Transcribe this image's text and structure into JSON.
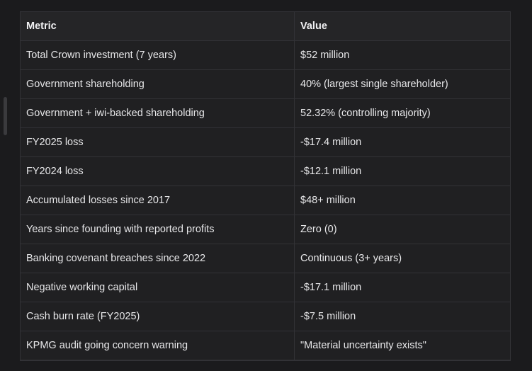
{
  "table": {
    "headers": [
      "Metric",
      "Value"
    ],
    "rows": [
      [
        "Total Crown investment (7 years)",
        "$52 million"
      ],
      [
        "Government shareholding",
        "40% (largest single shareholder)"
      ],
      [
        "Government + iwi-backed shareholding",
        "52.32% (controlling majority)"
      ],
      [
        "FY2025 loss",
        "-$17.4 million"
      ],
      [
        "FY2024 loss",
        "-$12.1 million"
      ],
      [
        "Accumulated losses since 2017",
        "$48+ million"
      ],
      [
        "Years since founding with reported profits",
        "Zero (0)"
      ],
      [
        "Banking covenant breaches since 2022",
        "Continuous (3+ years)"
      ],
      [
        "Negative working capital",
        "-$17.1 million"
      ],
      [
        "Cash burn rate (FY2025)",
        "-$7.5 million"
      ],
      [
        "KPMG audit going concern warning",
        "\"Material uncertainty exists\""
      ]
    ]
  },
  "colors": {
    "background": "#1b1b1d",
    "table_bg": "#202022",
    "header_bg": "#252527",
    "border": "#323236",
    "text": "#e7e7e9"
  }
}
